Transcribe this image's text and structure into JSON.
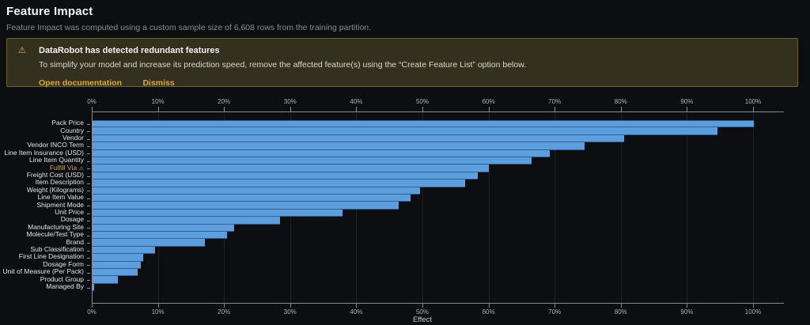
{
  "header": {
    "title": "Feature Impact",
    "subtitle": "Feature Impact was computed using a custom sample size of 6,608 rows from the training partition."
  },
  "banner": {
    "icon": "warning-triangle-icon",
    "title": "DataRobot has detected redundant features",
    "body": "To simplify your model and increase its prediction speed, remove the affected feature(s) using the “Create Feature List” option below.",
    "links": [
      "Open documentation",
      "Dismiss"
    ]
  },
  "colors": {
    "bar_fill": "#5d9edf",
    "bar_edge": "#2f5f93",
    "warning_accent": "#d9a93e",
    "banner_bg": "#33301e",
    "banner_border": "#6d6234",
    "axis": "#8a8a8f",
    "grid": "rgba(255,255,255,0.07)"
  },
  "chart_data": {
    "type": "bar",
    "orientation": "horizontal",
    "title": "Feature Impact",
    "xlabel": "Effect",
    "ylabel": "",
    "xlim": [
      0,
      100
    ],
    "grid": true,
    "x_ticks": [
      "0%",
      "10%",
      "20%",
      "30%",
      "40%",
      "50%",
      "60%",
      "70%",
      "80%",
      "90%",
      "100%"
    ],
    "categories": [
      "Pack Price",
      "Country",
      "Vendor",
      "Vendor INCO Term",
      "Line Item Insurance (USD)",
      "Line Item Quantity",
      "Fulfill Via",
      "Freight Cost (USD)",
      "Item Description",
      "Weight (Kilograms)",
      "Line Item Value",
      "Shipment Mode",
      "Unit Price",
      "Dosage",
      "Manufacturing Site",
      "Molecule/Test Type",
      "Brand",
      "Sub Classification",
      "First Line Designation",
      "Dosage Form",
      "Unit of Measure (Per Pack)",
      "Product Group",
      "Managed By"
    ],
    "values": [
      100,
      94.5,
      80.4,
      74.4,
      69.1,
      66.4,
      59.9,
      58.2,
      56.3,
      49.5,
      48.1,
      46.3,
      37.8,
      28.3,
      21.4,
      20.3,
      17.0,
      9.4,
      7.7,
      7.3,
      6.8,
      3.8,
      0.2
    ],
    "flagged_feature": "Fulfill Via"
  }
}
